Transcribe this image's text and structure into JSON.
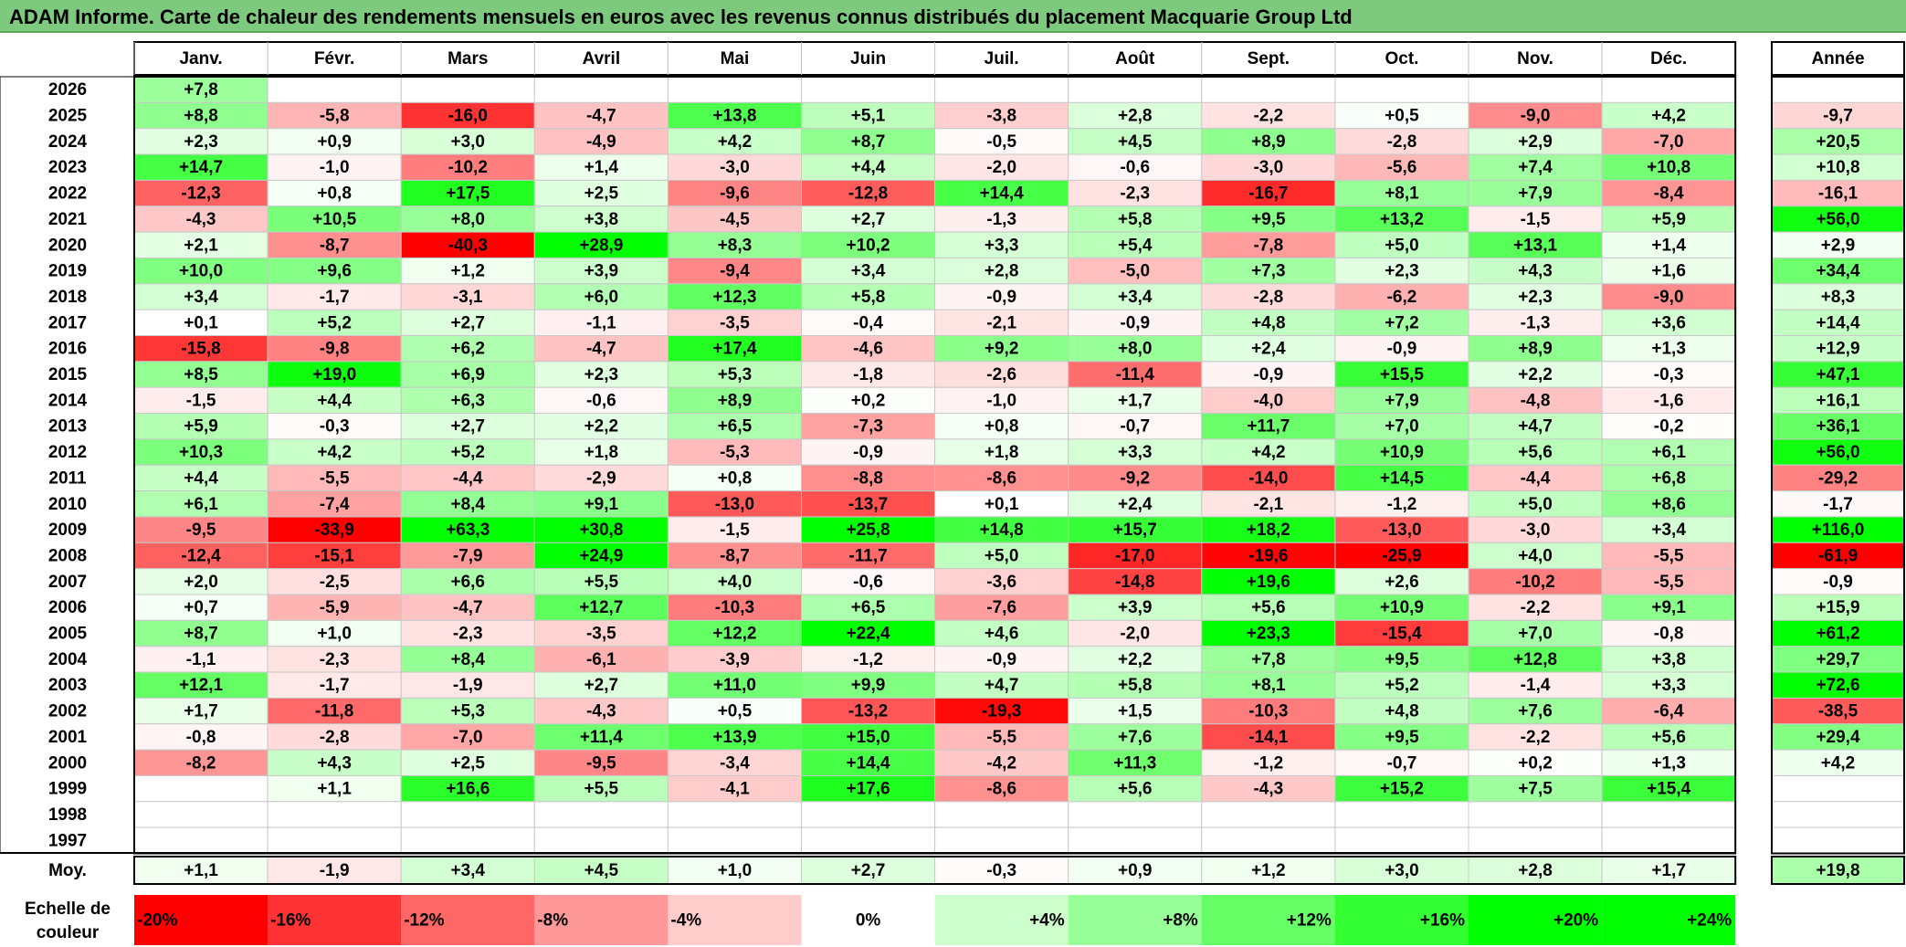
{
  "title": "ADAM Informe. Carte de chaleur des rendements mensuels en euros avec les revenus connus distribués du placement Macquarie Group Ltd",
  "chart_data": {
    "type": "heatmap",
    "months": [
      "Janv.",
      "Févr.",
      "Mars",
      "Avril",
      "Mai",
      "Juin",
      "Juil.",
      "Août",
      "Sept.",
      "Oct.",
      "Nov.",
      "Déc."
    ],
    "year_header": "Année",
    "avg_label": "Moy.",
    "scale_label_1": "Echelle de",
    "scale_label_2": "couleur",
    "scale": [
      {
        "value": -20,
        "label": "-20%"
      },
      {
        "value": -16,
        "label": "-16%"
      },
      {
        "value": -12,
        "label": "-12%"
      },
      {
        "value": -8,
        "label": "-8%"
      },
      {
        "value": -4,
        "label": "-4%"
      },
      {
        "value": 0,
        "label": "0%"
      },
      {
        "value": 4,
        "label": "+4%"
      },
      {
        "value": 8,
        "label": "+8%"
      },
      {
        "value": 12,
        "label": "+12%"
      },
      {
        "value": 16,
        "label": "+16%"
      },
      {
        "value": 20,
        "label": "+20%"
      },
      {
        "value": 24,
        "label": "+24%"
      }
    ],
    "rows": [
      {
        "year": "2026",
        "months": [
          "+7,8",
          "",
          "",
          "",
          "",
          "",
          "",
          "",
          "",
          "",
          "",
          ""
        ],
        "annual": ""
      },
      {
        "year": "2025",
        "months": [
          "+8,8",
          "-5,8",
          "-16,0",
          "-4,7",
          "+13,8",
          "+5,1",
          "-3,8",
          "+2,8",
          "-2,2",
          "+0,5",
          "-9,0",
          "+4,2"
        ],
        "annual": "-9,7"
      },
      {
        "year": "2024",
        "months": [
          "+2,3",
          "+0,9",
          "+3,0",
          "-4,9",
          "+4,2",
          "+8,7",
          "-0,5",
          "+4,5",
          "+8,9",
          "-2,8",
          "+2,9",
          "-7,0"
        ],
        "annual": "+20,5"
      },
      {
        "year": "2023",
        "months": [
          "+14,7",
          "-1,0",
          "-10,2",
          "+1,4",
          "-3,0",
          "+4,4",
          "-2,0",
          "-0,6",
          "-3,0",
          "-5,6",
          "+7,4",
          "+10,8"
        ],
        "annual": "+10,8"
      },
      {
        "year": "2022",
        "months": [
          "-12,3",
          "+0,8",
          "+17,5",
          "+2,5",
          "-9,6",
          "-12,8",
          "+14,4",
          "-2,3",
          "-16,7",
          "+8,1",
          "+7,9",
          "-8,4"
        ],
        "annual": "-16,1"
      },
      {
        "year": "2021",
        "months": [
          "-4,3",
          "+10,5",
          "+8,0",
          "+3,8",
          "-4,5",
          "+2,7",
          "-1,3",
          "+5,8",
          "+9,5",
          "+13,2",
          "-1,5",
          "+5,9"
        ],
        "annual": "+56,0"
      },
      {
        "year": "2020",
        "months": [
          "+2,1",
          "-8,7",
          "-40,3",
          "+28,9",
          "+8,3",
          "+10,2",
          "+3,3",
          "+5,4",
          "-7,8",
          "+5,0",
          "+13,1",
          "+1,4"
        ],
        "annual": "+2,9"
      },
      {
        "year": "2019",
        "months": [
          "+10,0",
          "+9,6",
          "+1,2",
          "+3,9",
          "-9,4",
          "+3,4",
          "+2,8",
          "-5,0",
          "+7,3",
          "+2,3",
          "+4,3",
          "+1,6"
        ],
        "annual": "+34,4"
      },
      {
        "year": "2018",
        "months": [
          "+3,4",
          "-1,7",
          "-3,1",
          "+6,0",
          "+12,3",
          "+5,8",
          "-0,9",
          "+3,4",
          "-2,8",
          "-6,2",
          "+2,3",
          "-9,0"
        ],
        "annual": "+8,3"
      },
      {
        "year": "2017",
        "months": [
          "+0,1",
          "+5,2",
          "+2,7",
          "-1,1",
          "-3,5",
          "-0,4",
          "-2,1",
          "-0,9",
          "+4,8",
          "+7,2",
          "-1,3",
          "+3,6"
        ],
        "annual": "+14,4"
      },
      {
        "year": "2016",
        "months": [
          "-15,8",
          "-9,8",
          "+6,2",
          "-4,7",
          "+17,4",
          "-4,6",
          "+9,2",
          "+8,0",
          "+2,4",
          "-0,9",
          "+8,9",
          "+1,3"
        ],
        "annual": "+12,9"
      },
      {
        "year": "2015",
        "months": [
          "+8,5",
          "+19,0",
          "+6,9",
          "+2,3",
          "+5,3",
          "-1,8",
          "-2,6",
          "-11,4",
          "-0,9",
          "+15,5",
          "+2,2",
          "-0,3"
        ],
        "annual": "+47,1"
      },
      {
        "year": "2014",
        "months": [
          "-1,5",
          "+4,4",
          "+6,3",
          "-0,6",
          "+8,9",
          "+0,2",
          "-1,0",
          "+1,7",
          "-4,0",
          "+7,9",
          "-4,8",
          "-1,6"
        ],
        "annual": "+16,1"
      },
      {
        "year": "2013",
        "months": [
          "+5,9",
          "-0,3",
          "+2,7",
          "+2,2",
          "+6,5",
          "-7,3",
          "+0,8",
          "-0,7",
          "+11,7",
          "+7,0",
          "+4,7",
          "-0,2"
        ],
        "annual": "+36,1"
      },
      {
        "year": "2012",
        "months": [
          "+10,3",
          "+4,2",
          "+5,2",
          "+1,8",
          "-5,3",
          "-0,9",
          "+1,8",
          "+3,3",
          "+4,2",
          "+10,9",
          "+5,6",
          "+6,1"
        ],
        "annual": "+56,0"
      },
      {
        "year": "2011",
        "months": [
          "+4,4",
          "-5,5",
          "-4,4",
          "-2,9",
          "+0,8",
          "-8,8",
          "-8,6",
          "-9,2",
          "-14,0",
          "+14,5",
          "-4,4",
          "+6,8"
        ],
        "annual": "-29,2"
      },
      {
        "year": "2010",
        "months": [
          "+6,1",
          "-7,4",
          "+8,4",
          "+9,1",
          "-13,0",
          "-13,7",
          "+0,1",
          "+2,4",
          "-2,1",
          "-1,2",
          "+5,0",
          "+8,6"
        ],
        "annual": "-1,7"
      },
      {
        "year": "2009",
        "months": [
          "-9,5",
          "-33,9",
          "+63,3",
          "+30,8",
          "-1,5",
          "+25,8",
          "+14,8",
          "+15,7",
          "+18,2",
          "-13,0",
          "-3,0",
          "+3,4"
        ],
        "annual": "+116,0"
      },
      {
        "year": "2008",
        "months": [
          "-12,4",
          "-15,1",
          "-7,9",
          "+24,9",
          "-8,7",
          "-11,7",
          "+5,0",
          "-17,0",
          "-19,6",
          "-25,9",
          "+4,0",
          "-5,5"
        ],
        "annual": "-61,9"
      },
      {
        "year": "2007",
        "months": [
          "+2,0",
          "-2,5",
          "+6,6",
          "+5,5",
          "+4,0",
          "-0,6",
          "-3,6",
          "-14,8",
          "+19,6",
          "+2,6",
          "-10,2",
          "-5,5"
        ],
        "annual": "-0,9"
      },
      {
        "year": "2006",
        "months": [
          "+0,7",
          "-5,9",
          "-4,7",
          "+12,7",
          "-10,3",
          "+6,5",
          "-7,6",
          "+3,9",
          "+5,6",
          "+10,9",
          "-2,2",
          "+9,1"
        ],
        "annual": "+15,9"
      },
      {
        "year": "2005",
        "months": [
          "+8,7",
          "+1,0",
          "-2,3",
          "-3,5",
          "+12,2",
          "+22,4",
          "+4,6",
          "-2,0",
          "+23,3",
          "-15,4",
          "+7,0",
          "-0,8"
        ],
        "annual": "+61,2"
      },
      {
        "year": "2004",
        "months": [
          "-1,1",
          "-2,3",
          "+8,4",
          "-6,1",
          "-3,9",
          "-1,2",
          "-0,9",
          "+2,2",
          "+7,8",
          "+9,5",
          "+12,8",
          "+3,8"
        ],
        "annual": "+29,7"
      },
      {
        "year": "2003",
        "months": [
          "+12,1",
          "-1,7",
          "-1,9",
          "+2,7",
          "+11,0",
          "+9,9",
          "+4,7",
          "+5,8",
          "+8,1",
          "+5,2",
          "-1,4",
          "+3,3"
        ],
        "annual": "+72,6"
      },
      {
        "year": "2002",
        "months": [
          "+1,7",
          "-11,8",
          "+5,3",
          "-4,3",
          "+0,5",
          "-13,2",
          "-19,3",
          "+1,5",
          "-10,3",
          "+4,8",
          "+7,6",
          "-6,4"
        ],
        "annual": "-38,5"
      },
      {
        "year": "2001",
        "months": [
          "-0,8",
          "-2,8",
          "-7,0",
          "+11,4",
          "+13,9",
          "+15,0",
          "-5,5",
          "+7,6",
          "-14,1",
          "+9,5",
          "-2,2",
          "+5,6"
        ],
        "annual": "+29,4"
      },
      {
        "year": "2000",
        "months": [
          "-8,2",
          "+4,3",
          "+2,5",
          "-9,5",
          "-3,4",
          "+14,4",
          "-4,2",
          "+11,3",
          "-1,2",
          "-0,7",
          "+0,2",
          "+1,3"
        ],
        "annual": "+4,2"
      },
      {
        "year": "1999",
        "months": [
          "",
          "+1,1",
          "+16,6",
          "+5,5",
          "-4,1",
          "+17,6",
          "-8,6",
          "+5,6",
          "-4,3",
          "+15,2",
          "+7,5",
          "+15,4"
        ],
        "annual": ""
      },
      {
        "year": "1998",
        "months": [
          "",
          "",
          "",
          "",
          "",
          "",
          "",
          "",
          "",
          "",
          "",
          ""
        ],
        "annual": ""
      },
      {
        "year": "1997",
        "months": [
          "",
          "",
          "",
          "",
          "",
          "",
          "",
          "",
          "",
          "",
          "",
          ""
        ],
        "annual": ""
      }
    ],
    "average": {
      "months": [
        "+1,1",
        "-1,9",
        "+3,4",
        "+4,5",
        "+1,0",
        "+2,7",
        "-0,3",
        "+0,9",
        "+1,2",
        "+3,0",
        "+2,8",
        "+1,7"
      ],
      "annual": "+19,8"
    }
  }
}
